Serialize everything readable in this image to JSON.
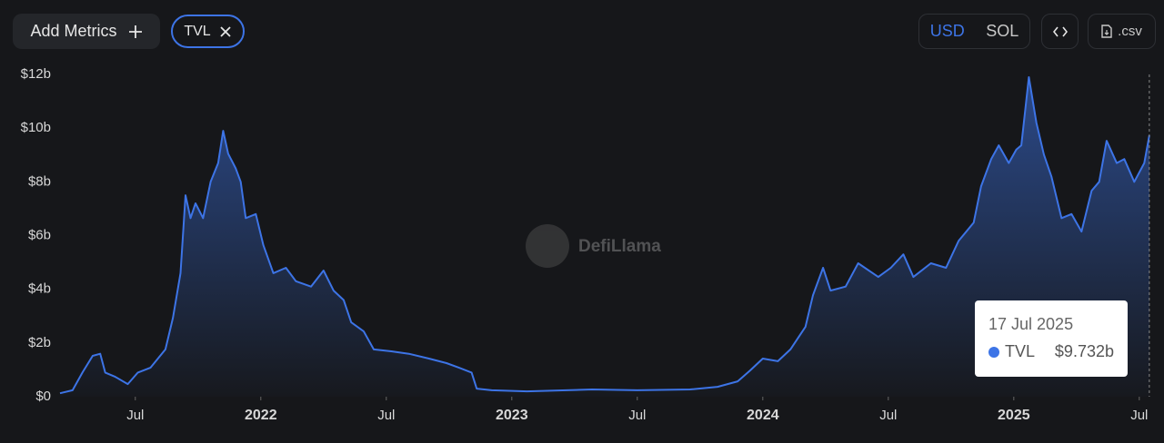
{
  "toolbar": {
    "add_metrics": "Add Metrics",
    "currencies": [
      "USD",
      "SOL"
    ],
    "csv": ".csv"
  },
  "watermark": "DefiLlama",
  "chart_data": {
    "type": "area",
    "x": [
      2021.2,
      2021.25,
      2021.29,
      2021.33,
      2021.36,
      2021.38,
      2021.42,
      2021.47,
      2021.51,
      2021.56,
      2021.62,
      2021.65,
      2021.68,
      2021.7,
      2021.72,
      2021.74,
      2021.77,
      2021.8,
      2021.83,
      2021.85,
      2021.87,
      2021.9,
      2021.92,
      2021.94,
      2021.98,
      2022.01,
      2022.05,
      2022.1,
      2022.14,
      2022.2,
      2022.25,
      2022.29,
      2022.33,
      2022.36,
      2022.41,
      2022.45,
      2022.52,
      2022.59,
      2022.67,
      2022.74,
      2022.79,
      2022.84,
      2022.86,
      2022.92,
      2023.06,
      2023.32,
      2023.5,
      2023.71,
      2023.82,
      2023.9,
      2023.95,
      2024.0,
      2024.06,
      2024.11,
      2024.17,
      2024.2,
      2024.24,
      2024.27,
      2024.33,
      2024.38,
      2024.46,
      2024.51,
      2024.56,
      2024.6,
      2024.67,
      2024.73,
      2024.78,
      2024.84,
      2024.87,
      2024.91,
      2024.94,
      2024.98,
      2025.01,
      2025.03,
      2025.06,
      2025.09,
      2025.12,
      2025.15,
      2025.19,
      2025.23,
      2025.27,
      2025.31,
      2025.34,
      2025.37,
      2025.41,
      2025.44,
      2025.48,
      2025.52,
      2025.54
    ],
    "series": [
      {
        "name": "TVL",
        "color": "#3d74e6",
        "values": [
          0.13,
          0.24,
          0.91,
          1.52,
          1.6,
          0.9,
          0.74,
          0.47,
          0.9,
          1.08,
          1.76,
          2.94,
          4.6,
          7.5,
          6.65,
          7.2,
          6.65,
          8.0,
          8.7,
          9.9,
          9.05,
          8.5,
          8.0,
          6.65,
          6.8,
          5.64,
          4.6,
          4.8,
          4.3,
          4.1,
          4.7,
          3.95,
          3.6,
          2.77,
          2.43,
          1.76,
          1.69,
          1.6,
          1.42,
          1.25,
          1.08,
          0.9,
          0.3,
          0.24,
          0.2,
          0.27,
          0.24,
          0.27,
          0.37,
          0.57,
          0.98,
          1.42,
          1.32,
          1.76,
          2.6,
          3.78,
          4.8,
          3.95,
          4.1,
          4.97,
          4.46,
          4.8,
          5.3,
          4.46,
          4.97,
          4.8,
          5.8,
          6.48,
          7.84,
          8.85,
          9.36,
          8.7,
          9.2,
          9.36,
          11.9,
          10.2,
          9.02,
          8.2,
          6.65,
          6.8,
          6.15,
          7.67,
          8.0,
          9.53,
          8.7,
          8.85,
          8.0,
          8.7,
          9.732
        ]
      }
    ],
    "xlim": [
      2021.2,
      2025.555
    ],
    "xticks": [
      {
        "value": 2021.5,
        "label": "Jul"
      },
      2022,
      {
        "value": 2022.5,
        "label": "Jul"
      },
      2023,
      {
        "value": 2023.5,
        "label": "Jul"
      },
      2024,
      {
        "value": 2024.5,
        "label": "Jul"
      },
      2025,
      {
        "value": 2025.5,
        "label": "Jul"
      }
    ],
    "ylim": [
      0,
      12
    ],
    "yticks": [
      {
        "value": 0,
        "label": "$0"
      },
      {
        "value": 2,
        "label": "$2b"
      },
      {
        "value": 4,
        "label": "$4b"
      },
      {
        "value": 6,
        "label": "$6b"
      },
      {
        "value": 8,
        "label": "$8b"
      },
      {
        "value": 10,
        "label": "$10b"
      },
      {
        "value": 12,
        "label": "$12b"
      }
    ],
    "grid": false,
    "tooltip": {
      "date": "17 Jul 2025",
      "value_label": "$9.732b"
    }
  }
}
